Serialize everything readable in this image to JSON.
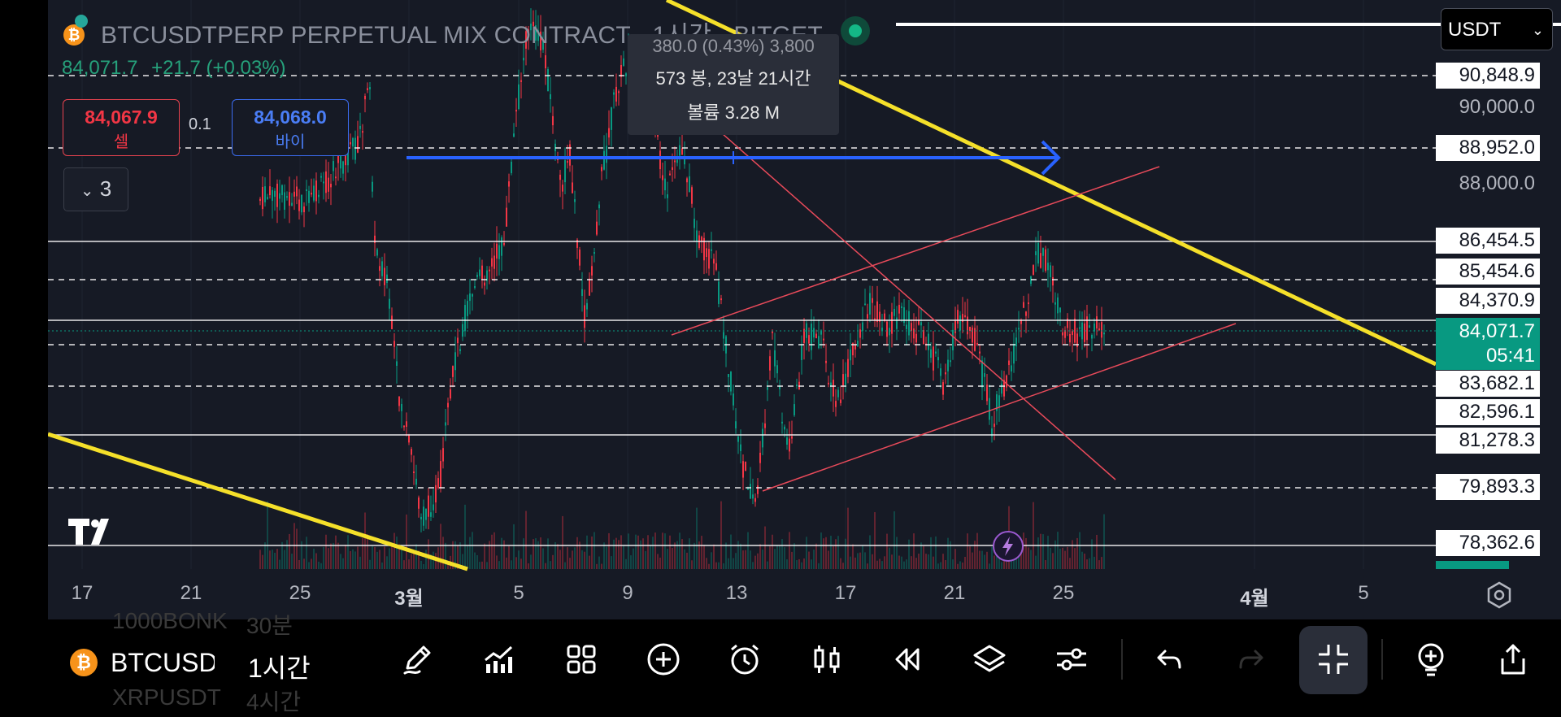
{
  "header": {
    "title": "BTCUSDTPERP PERPETUAL MIX CONTRACT · 1시간 · BITGET",
    "last_price": "84,071.7",
    "change": "+21.7 (+0.03%)"
  },
  "trade": {
    "sell_price": "84,067.9",
    "sell_label": "셀",
    "quantity": "0.1",
    "buy_price": "84,068.0",
    "buy_label": "바이",
    "collapse_label": "3"
  },
  "tooltip": {
    "line1": "380.0 (0.43%) 3,800",
    "line2": "573 봉, 23날 21시간",
    "line3": "볼륨 3.28 M"
  },
  "currency_select": {
    "value": "USDT"
  },
  "price_axis": {
    "labels": [
      "90,848.9",
      "88,952.0",
      "86,454.5",
      "85,454.6",
      "84,370.9",
      "83,682.1",
      "82,596.1",
      "81,278.3",
      "79,893.3",
      "78,362.6"
    ],
    "scale_labels": [
      "90,000.0",
      "88,000.0"
    ],
    "current_price": "84,071.7",
    "countdown": "05:41"
  },
  "time_axis": {
    "ticks": [
      "17",
      "21",
      "25",
      "3월",
      "5",
      "9",
      "13",
      "17",
      "21",
      "25",
      "4월",
      "5"
    ]
  },
  "bottom_bar": {
    "symbol": "BTCUSDT",
    "interval": "1시간",
    "ghost_top_symbol": "1000BONK",
    "ghost_top_interval": "30분",
    "ghost_bottom_symbol": "XRPUSDT",
    "ghost_bottom_interval": "4시간"
  },
  "icons": {
    "coin": "bitcoin-icon",
    "tools": [
      "pencil-icon",
      "indicators-icon",
      "grid-icon",
      "plus-circle-icon",
      "alarm-icon",
      "candles-icon",
      "replay-icon",
      "layers-icon",
      "sliders-icon",
      "undo-icon",
      "redo-icon",
      "collapse-icon",
      "add-object-icon",
      "share-icon"
    ]
  },
  "colors": {
    "up": "#089981",
    "down": "#f23645",
    "trendline": "#f5e02a",
    "arrow": "#2962ff",
    "channel": "#e84a5a"
  }
}
